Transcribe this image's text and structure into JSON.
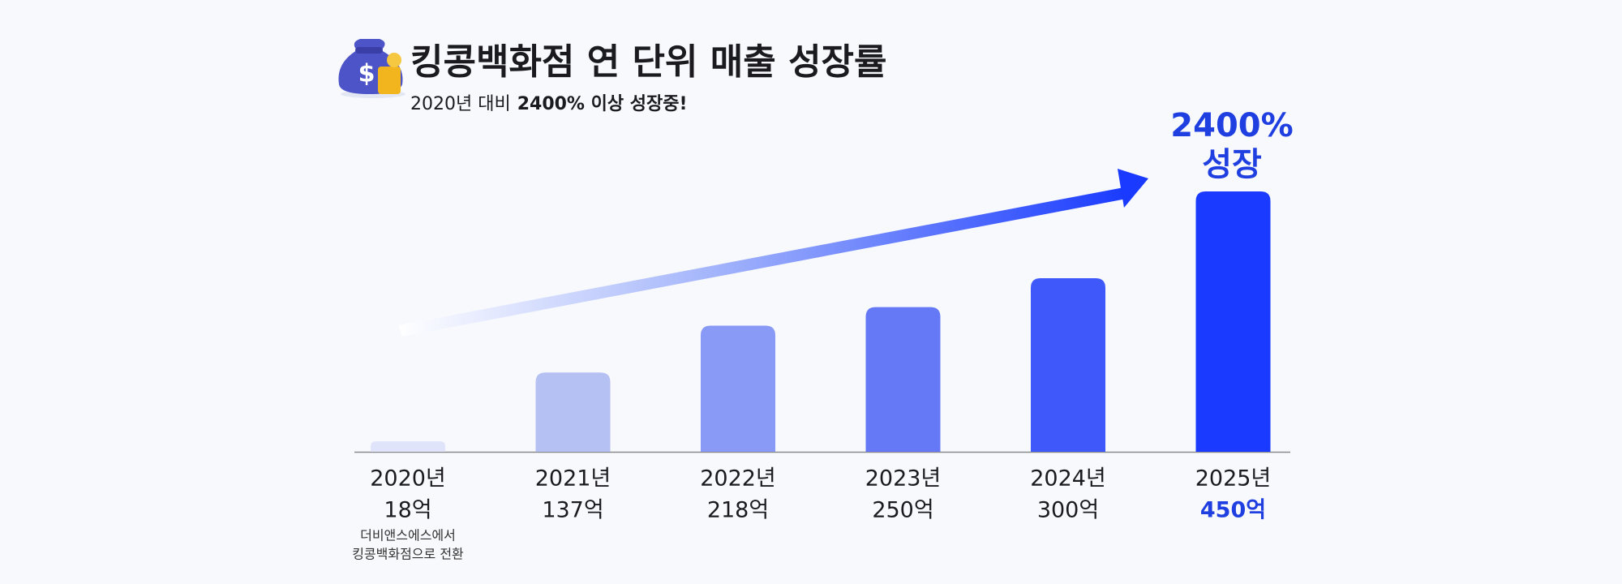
{
  "chart_data": {
    "type": "bar",
    "title": "킹콩백화점 연 단위 매출 성장률",
    "subtitle": [
      "2020년 대비",
      "2400% 이상 성장중!"
    ],
    "categories": [
      "2020년",
      "2021년",
      "2022년",
      "2023년",
      "2024년",
      "2025년"
    ],
    "values": [
      18,
      137,
      218,
      250,
      300,
      450
    ],
    "value_labels": [
      "18억",
      "137억",
      "218억",
      "250억",
      "300억",
      "450억"
    ],
    "colors": [
      "#dfe4fb",
      "#b5c0f3",
      "#8899f6",
      "#6579f7",
      "#3f58f9",
      "#1a3bff"
    ],
    "annotation": [
      "2400%",
      "성장"
    ],
    "note": [
      "더비앤스에스에서",
      "킹콩백화점으로 전환"
    ]
  }
}
